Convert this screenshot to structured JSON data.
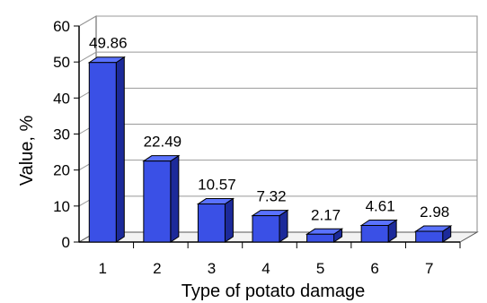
{
  "chart_data": {
    "type": "bar",
    "categories": [
      "1",
      "2",
      "3",
      "4",
      "5",
      "6",
      "7"
    ],
    "values": [
      49.86,
      22.49,
      10.57,
      7.32,
      2.17,
      4.61,
      2.98
    ],
    "value_labels": [
      "49.86",
      "22.49",
      "10.57",
      "7.32",
      "2.17",
      "4.61",
      "2.98"
    ],
    "xlabel": "Type of potato damage",
    "ylabel": "Value, %",
    "ylim": [
      0,
      60
    ],
    "yticks": [
      "0",
      "10",
      "20",
      "30",
      "40",
      "50",
      "60"
    ],
    "grid": true,
    "three_d": true,
    "bar_color": "#3a50e6",
    "bar_top_color": "#5a72ff",
    "bar_side_color": "#1c2a9a"
  }
}
